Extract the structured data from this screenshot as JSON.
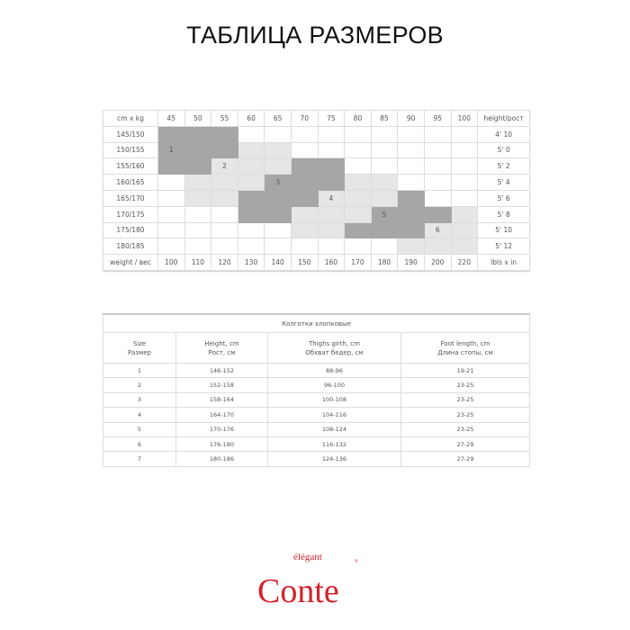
{
  "title": "ТАБЛИЦА РАЗМЕРОВ",
  "grid": {
    "corner": "cm x kg",
    "weights_kg": [
      "45",
      "50",
      "55",
      "60",
      "65",
      "70",
      "75",
      "80",
      "85",
      "90",
      "95",
      "100"
    ],
    "height_header": "height/рост",
    "rows": [
      {
        "cm": "145/150",
        "ft": "4' 10",
        "shade": "dddwwwwwwwww",
        "labels": {}
      },
      {
        "cm": "150/155",
        "ft": "5' 0",
        "shade": "dddllwwwwwww",
        "labels": {
          "1": "1"
        }
      },
      {
        "cm": "155/160",
        "ft": "5' 2",
        "shade": "ddllldd wwwww",
        "labels": {
          "3": "2"
        }
      },
      {
        "cm": "160/165",
        "ft": "5' 4",
        "shade": "wllldddllwww",
        "labels": {
          "5": "3"
        }
      },
      {
        "cm": "165/170",
        "ft": "5' 6",
        "shade": "wllddd llldww",
        "labels": {
          "7": "4"
        }
      },
      {
        "cm": "170/175",
        "ft": "5' 8",
        "shade": "wwwddllldddll",
        "labels": {
          "9": "5"
        }
      },
      {
        "cm": "175/180",
        "ft": "5' 10",
        "shade": "wwwwwllddd ll",
        "labels": {
          "11": "6"
        }
      },
      {
        "cm": "180/185",
        "ft": "5' 12",
        "shade": "wwwwwwwwwlll",
        "labels": {}
      }
    ],
    "footer_label": "weight / вес",
    "weights_lbs": [
      "100",
      "110",
      "120",
      "130",
      "140",
      "150",
      "160",
      "170",
      "180",
      "190",
      "200",
      "220"
    ],
    "footer_unit": "lbls x in"
  },
  "sizes": {
    "caption": "Колготки хлопковые",
    "headers": [
      [
        "Size",
        "Размер"
      ],
      [
        "Height, cm",
        "Рост, см"
      ],
      [
        "Thighs girth, cm",
        "Обхват бедер, см"
      ],
      [
        "Foot length, cm",
        "Длина стопы, см"
      ]
    ],
    "rows": [
      [
        "1",
        "146-152",
        "88-96",
        "19-21"
      ],
      [
        "2",
        "152-158",
        "96-100",
        "23-25"
      ],
      [
        "3",
        "158-164",
        "100-108",
        "23-25"
      ],
      [
        "4",
        "164-170",
        "104-116",
        "23-25"
      ],
      [
        "5",
        "170-176",
        "108-124",
        "23-25"
      ],
      [
        "6",
        "176-180",
        "116-132",
        "27-29"
      ],
      [
        "7",
        "180-186",
        "124-136",
        "27-29"
      ]
    ]
  },
  "logo": {
    "small": "élégant",
    "main": "Conte",
    "mark": "®",
    "color": "#d3222a"
  },
  "colors": {
    "dark_cell": "#a6a6a6",
    "light_cell": "#e6e6e6"
  }
}
